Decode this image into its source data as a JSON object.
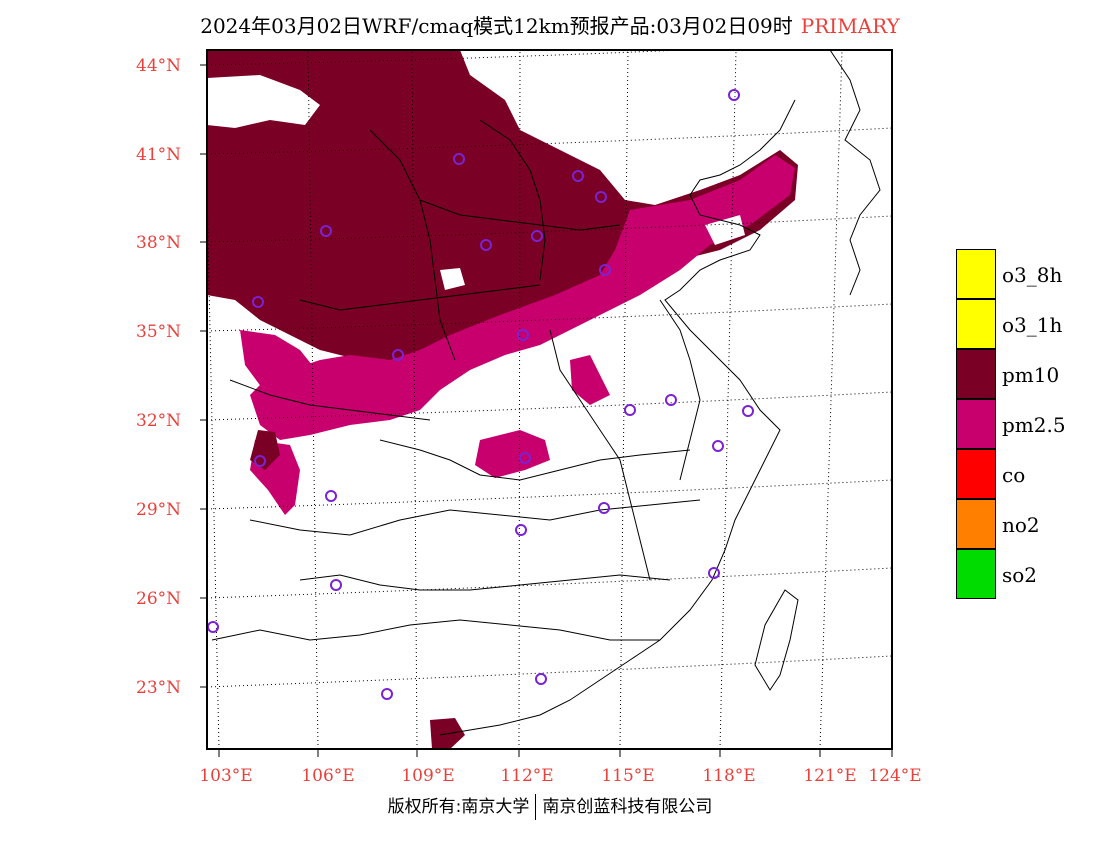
{
  "title": {
    "main": "2024年03月02日WRF/cmaq模式12km预报产品:03月02日09时",
    "tag": "PRIMARY"
  },
  "colors": {
    "tag": "#e8413c",
    "axis_labels": "#e8413c",
    "pm10": "#7a0026",
    "pm25": "#c8006e",
    "station_marker": "#7b22d4"
  },
  "lat_labels": [
    "44°N",
    "41°N",
    "38°N",
    "35°N",
    "32°N",
    "29°N",
    "26°N",
    "23°N"
  ],
  "lon_labels": [
    "103°E",
    "106°E",
    "109°E",
    "112°E",
    "115°E",
    "118°E",
    "121°E",
    "124°E"
  ],
  "legend": [
    {
      "label": "o3_8h",
      "color": "#ffff00"
    },
    {
      "label": "o3_1h",
      "color": "#ffff00"
    },
    {
      "label": "pm10",
      "color": "#7a0026"
    },
    {
      "label": "pm2.5",
      "color": "#c8006e"
    },
    {
      "label": "co",
      "color": "#ff0000"
    },
    {
      "label": "no2",
      "color": "#ff7f00"
    },
    {
      "label": "so2",
      "color": "#00dc00"
    }
  ],
  "footer": {
    "left": "版权所有:南京大学",
    "right": "南京创蓝科技有限公司"
  }
}
